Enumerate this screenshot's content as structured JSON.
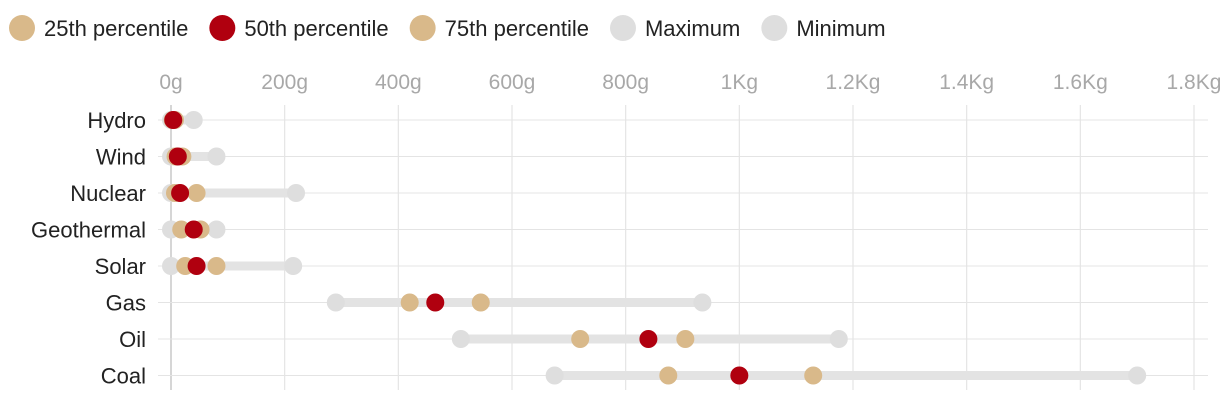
{
  "colors": {
    "p25": "#d9b98a",
    "p50": "#b0000f",
    "p75": "#d9b98a",
    "max": "#dedede",
    "min": "#dedede",
    "range": "#e3e3e3",
    "grid": "#e4e4e4",
    "axis": "#c9c9c9"
  },
  "chart_data": {
    "type": "scatter",
    "legend_position": "top-left",
    "grid": true,
    "xlim": [
      0,
      1800
    ],
    "x_ticks": [
      {
        "value": 0,
        "label": "0g"
      },
      {
        "value": 200,
        "label": "200g"
      },
      {
        "value": 400,
        "label": "400g"
      },
      {
        "value": 600,
        "label": "600g"
      },
      {
        "value": 800,
        "label": "800g"
      },
      {
        "value": 1000,
        "label": "1Kg"
      },
      {
        "value": 1200,
        "label": "1.2Kg"
      },
      {
        "value": 1400,
        "label": "1.4Kg"
      },
      {
        "value": 1600,
        "label": "1.6Kg"
      },
      {
        "value": 1800,
        "label": "1.8Kg"
      }
    ],
    "legend": [
      {
        "key": "p25",
        "label": "25th percentile"
      },
      {
        "key": "p50",
        "label": "50th percentile"
      },
      {
        "key": "p75",
        "label": "75th percentile"
      },
      {
        "key": "max",
        "label": "Maximum"
      },
      {
        "key": "min",
        "label": "Minimum"
      }
    ],
    "categories": [
      "Hydro",
      "Wind",
      "Nuclear",
      "Geothermal",
      "Solar",
      "Gas",
      "Oil",
      "Coal"
    ],
    "series": [
      {
        "name": "25th percentile",
        "key": "p25",
        "values": [
          3,
          8,
          7,
          18,
          25,
          420,
          720,
          875
        ]
      },
      {
        "name": "50th percentile",
        "key": "p50",
        "values": [
          4,
          12,
          16,
          40,
          45,
          465,
          840,
          1000
        ]
      },
      {
        "name": "75th percentile",
        "key": "p75",
        "values": [
          7,
          20,
          45,
          52,
          80,
          545,
          905,
          1130
        ]
      },
      {
        "name": "Maximum",
        "key": "max",
        "values": [
          40,
          80,
          220,
          80,
          215,
          935,
          1175,
          1700
        ]
      },
      {
        "name": "Minimum",
        "key": "min",
        "values": [
          0,
          0,
          0,
          0,
          0,
          290,
          510,
          675
        ]
      }
    ]
  }
}
